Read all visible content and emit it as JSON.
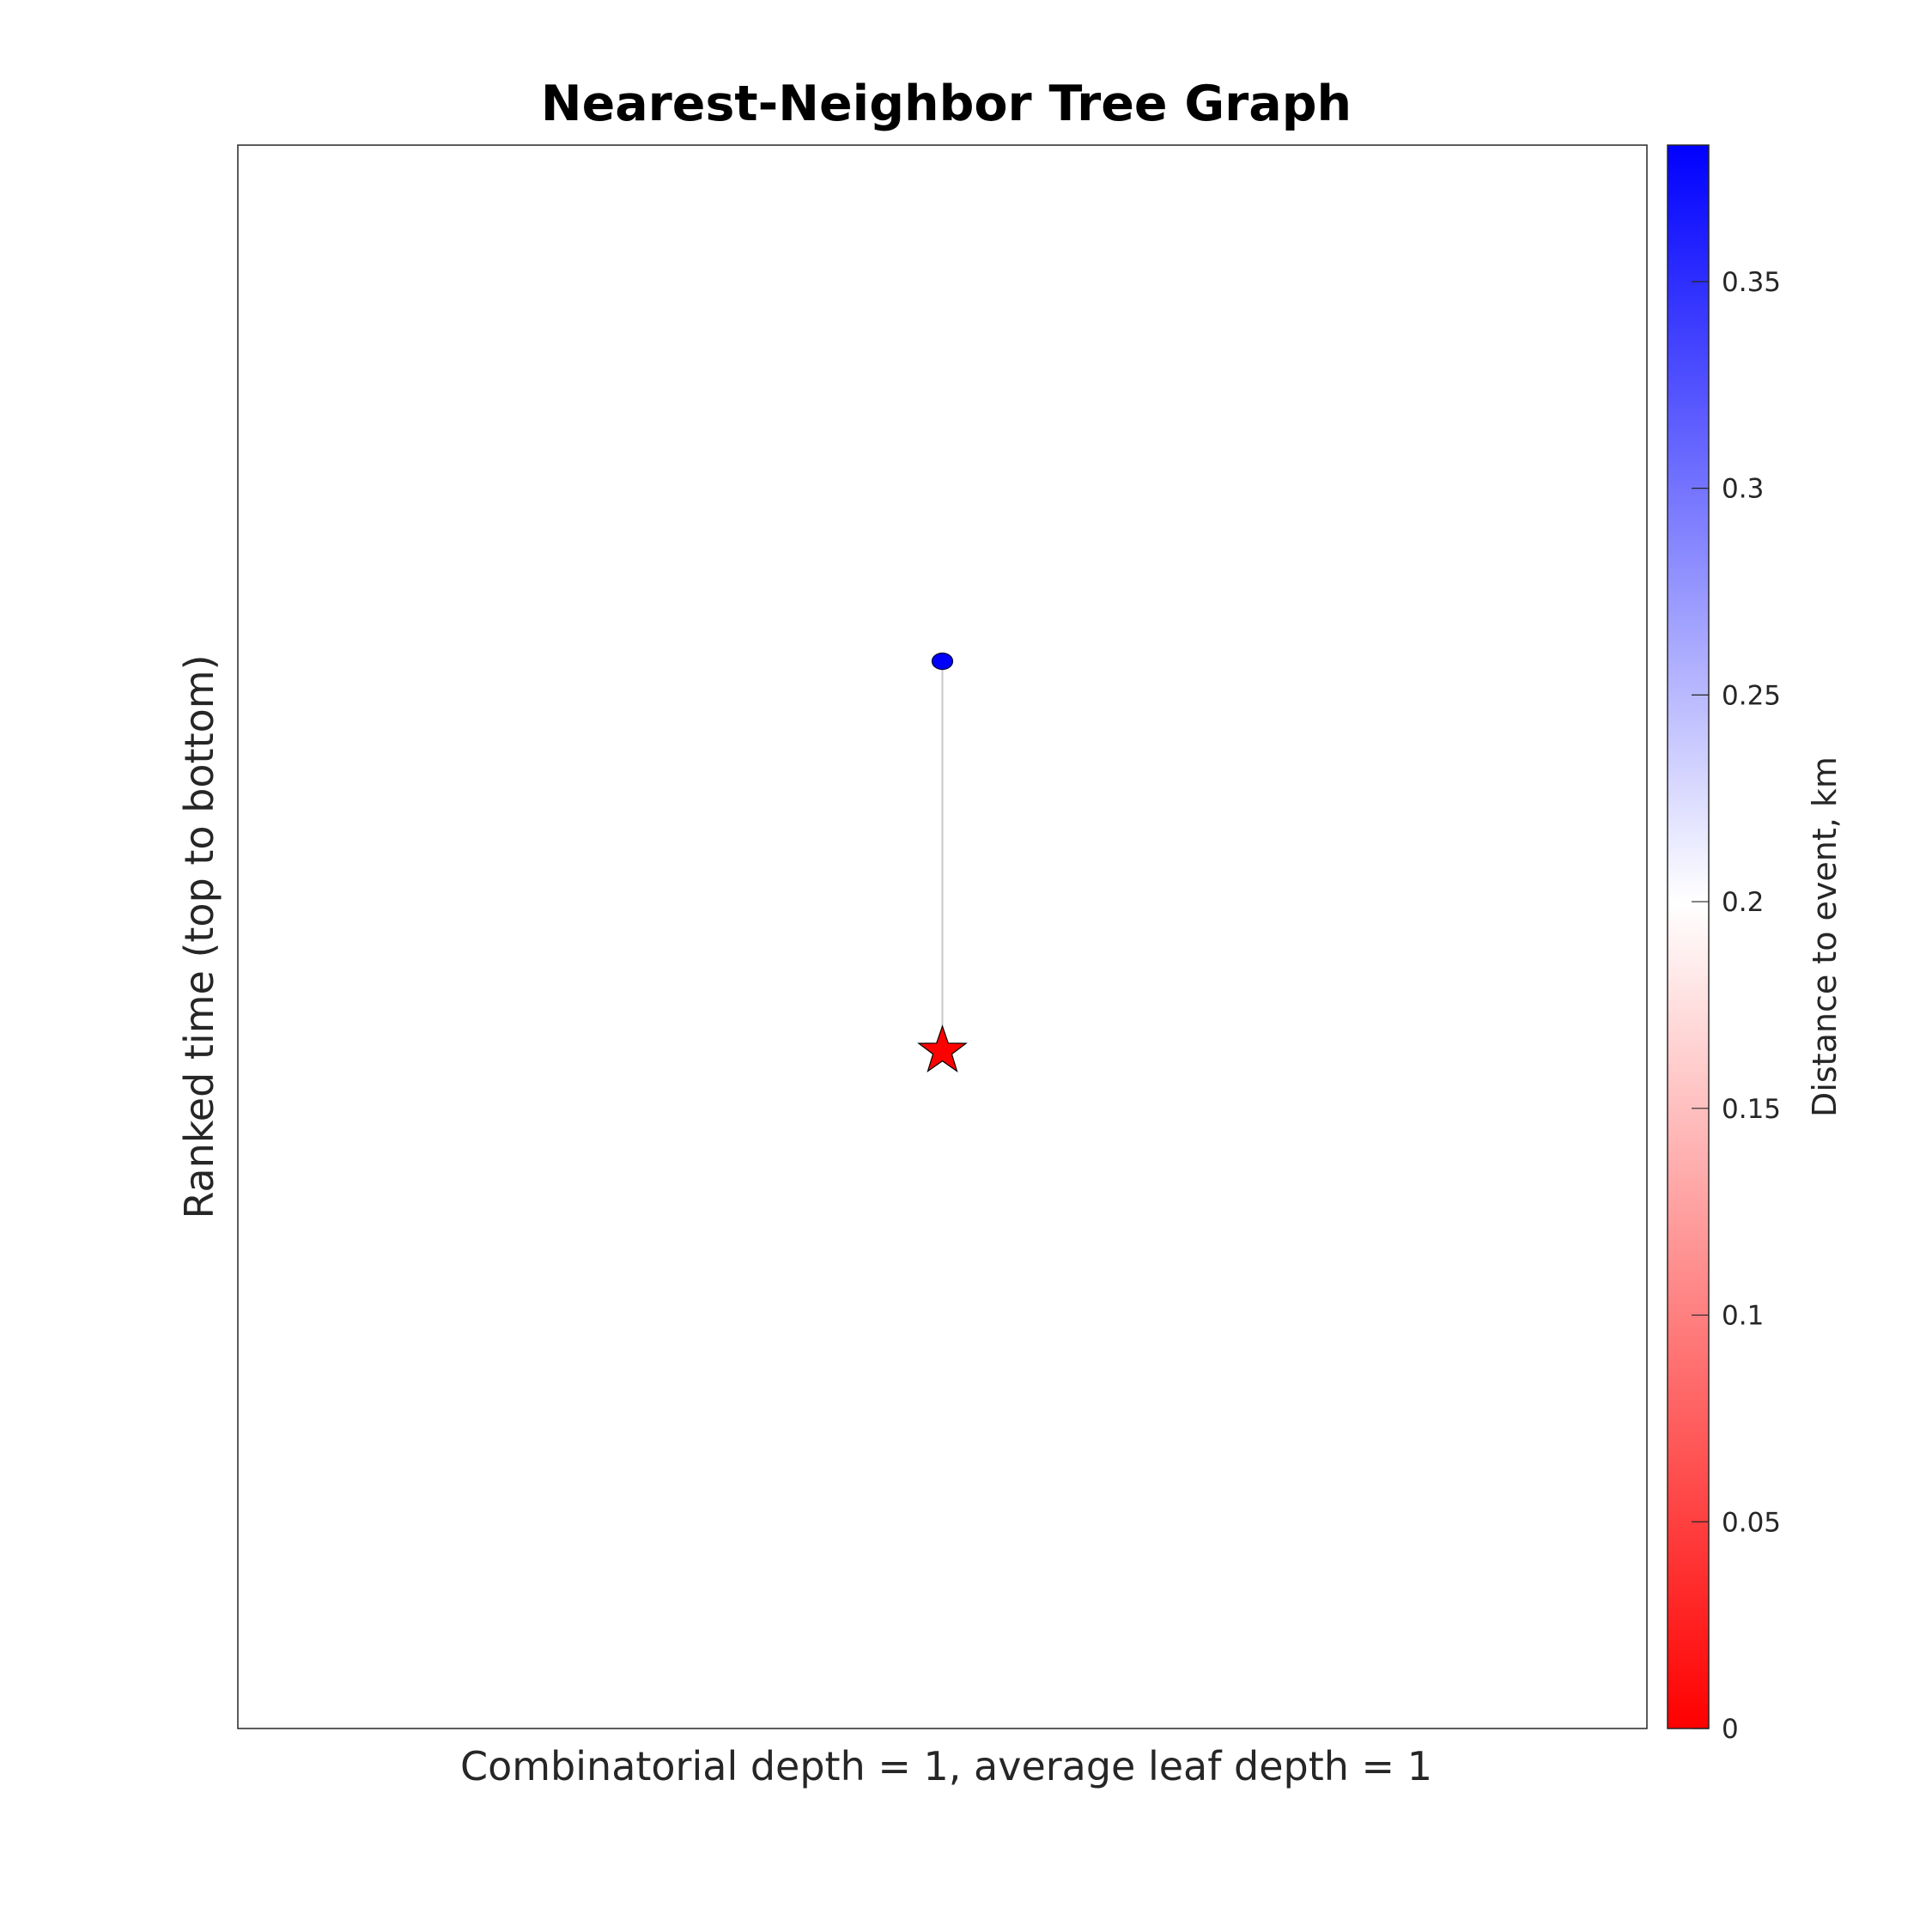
{
  "chart_data": {
    "type": "scatter",
    "title": "Nearest-Neighbor Tree Graph",
    "xlabel": "Combinatorial depth = 1, average leaf depth = 1",
    "ylabel": "Ranked time (top to bottom)",
    "xlim": [
      0,
      2
    ],
    "ylim": [
      -0.33,
      3.75
    ],
    "y_reversed": true,
    "grid": false,
    "nodes": [
      {
        "id": "neighbor",
        "x": 1,
        "y": 1,
        "distance_km": 0.383,
        "marker": "circle",
        "color": "#0000ff"
      },
      {
        "id": "event",
        "x": 1,
        "y": 2,
        "distance_km": 0,
        "marker": "star",
        "color": "#ff0000"
      }
    ],
    "edges": [
      {
        "from": "neighbor",
        "to": "event",
        "color": "#c8c8c8"
      }
    ],
    "colorbar": {
      "label": "Distance to event, km",
      "range": [
        0,
        0.383
      ],
      "ticks": [
        0,
        0.05,
        0.1,
        0.15,
        0.2,
        0.25,
        0.3,
        0.35
      ],
      "tick_labels": [
        "0",
        "0.05",
        "0.1",
        "0.15",
        "0.2",
        "0.25",
        "0.3",
        "0.35"
      ],
      "colors": [
        "#ff0000",
        "#ffffff",
        "#0000ff"
      ]
    }
  }
}
